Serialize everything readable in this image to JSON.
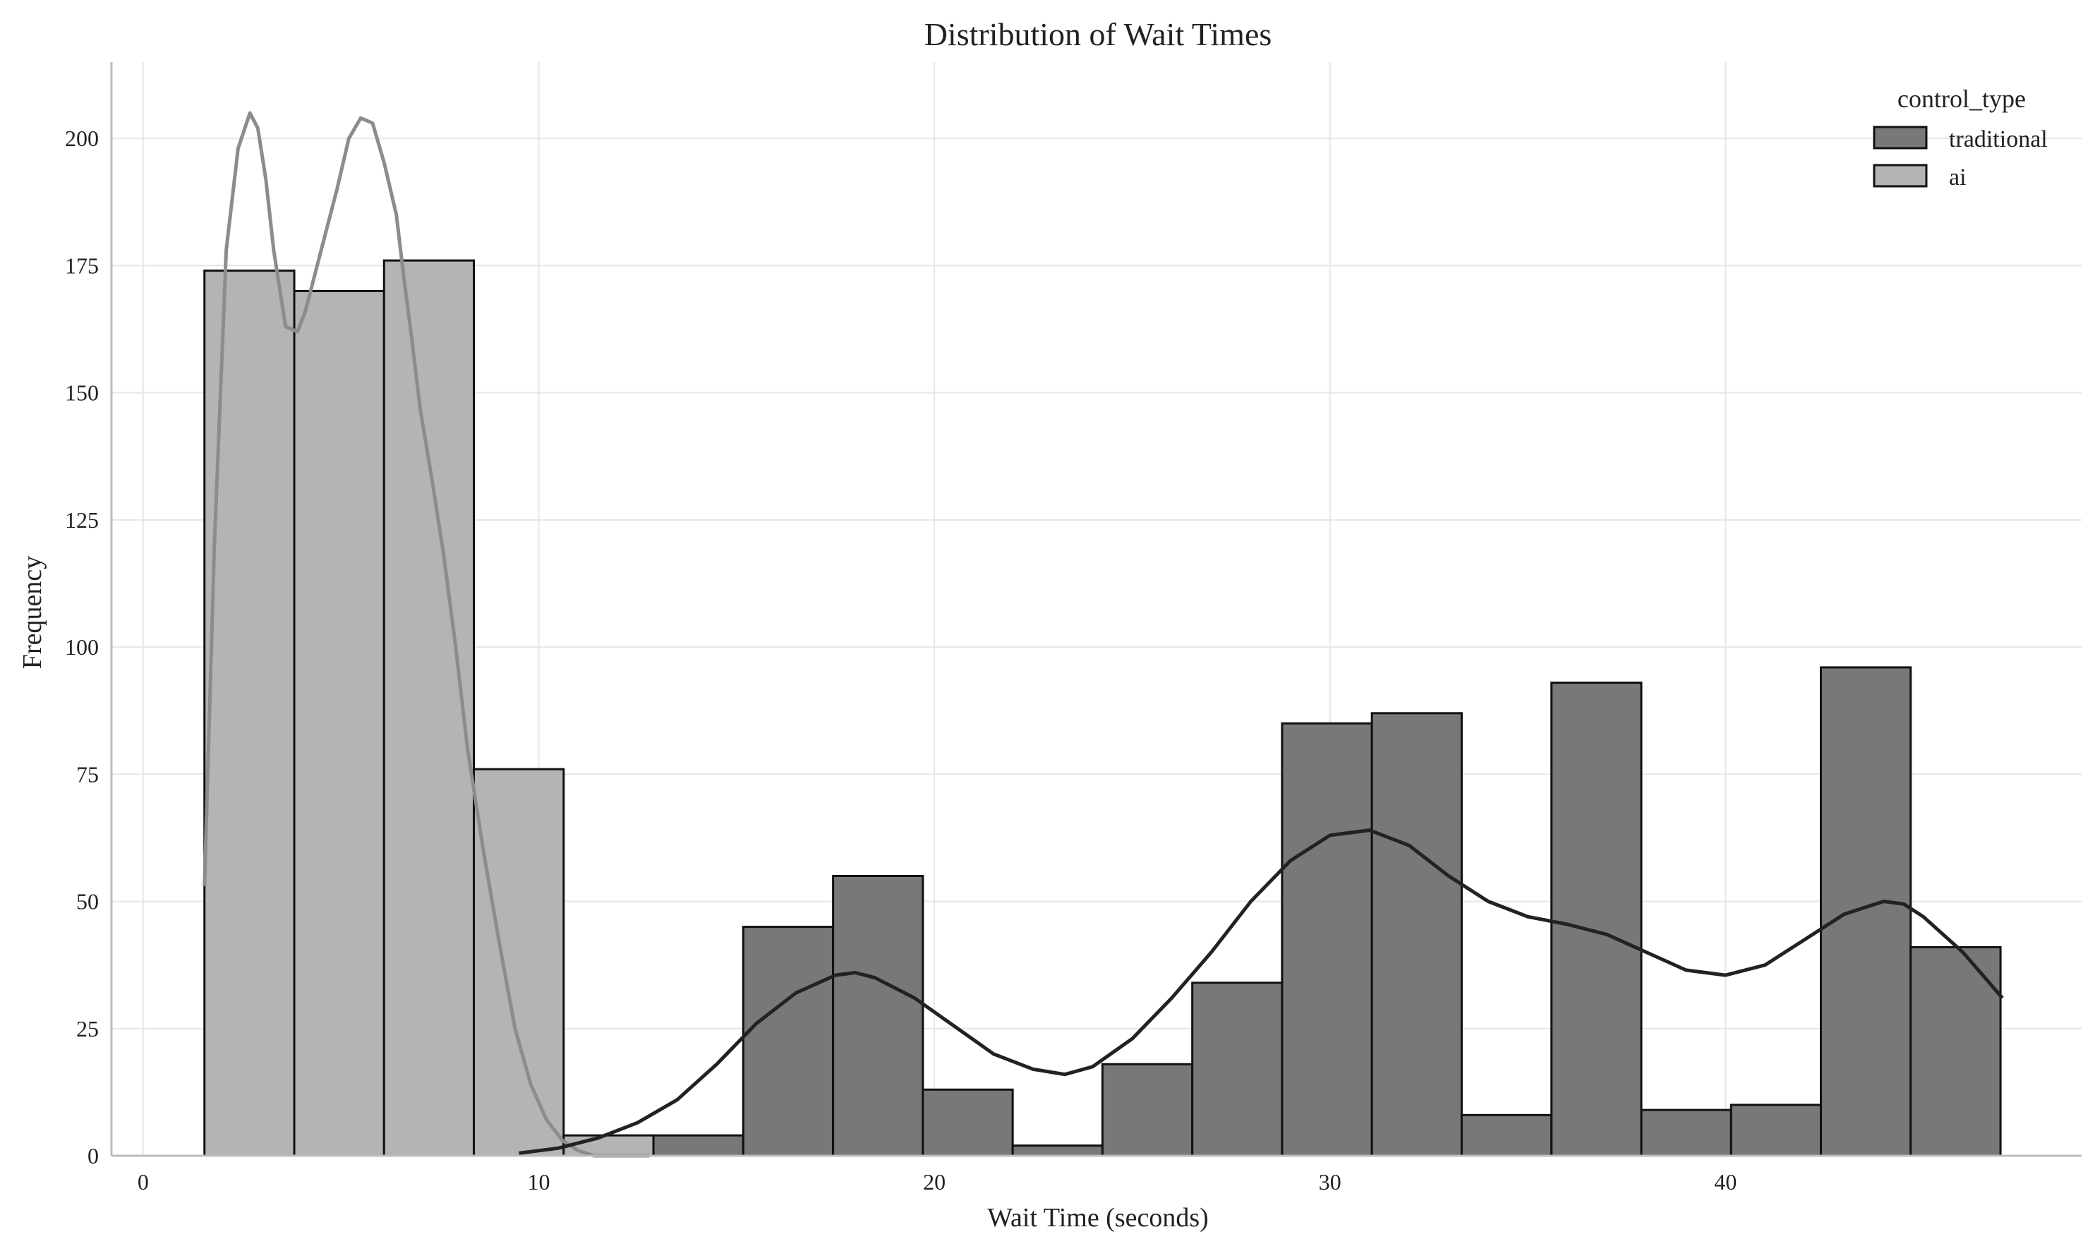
{
  "chart_data": {
    "type": "bar",
    "title": "Distribution of Wait Times",
    "xlabel": "Wait Time (seconds)",
    "ylabel": "Frequency",
    "xlim": [
      -0.8,
      49.0
    ],
    "ylim": [
      0,
      215
    ],
    "xticks": [
      0,
      10,
      20,
      30,
      40
    ],
    "yticks": [
      0,
      25,
      50,
      75,
      100,
      125,
      150,
      175,
      200
    ],
    "grid": true,
    "legend": {
      "title": "control_type",
      "position": "top-right"
    },
    "colors": {
      "traditional_fill": "#787878",
      "ai_fill": "#b4b4b4",
      "edge": "#111111",
      "traditional_kde": "#222222",
      "ai_kde": "#8c8c8c",
      "grid": "#e6e6e6",
      "axis": "#bbbbbb"
    },
    "bin_edges": [
      1.55,
      3.82,
      6.09,
      8.36,
      10.63,
      12.9,
      15.17,
      17.44,
      19.71,
      21.98,
      24.25,
      26.52,
      28.79,
      31.06,
      33.33,
      35.6,
      37.87,
      40.14,
      42.41,
      44.68,
      46.95
    ],
    "series": [
      {
        "name": "traditional",
        "values": [
          0,
          0,
          0,
          0,
          0,
          4,
          45,
          55,
          13,
          2,
          18,
          34,
          85,
          87,
          8,
          93,
          9,
          10,
          96,
          41
        ],
        "kde": {
          "x": [
            9.5,
            10.5,
            11.5,
            12.5,
            13.5,
            14.5,
            15.5,
            16.5,
            17.5,
            18.0,
            18.5,
            19.5,
            20.5,
            21.5,
            22.5,
            23.3,
            24.0,
            25.0,
            26.0,
            27.0,
            28.0,
            29.0,
            30.0,
            31.0,
            32.0,
            33.0,
            34.0,
            35.0,
            36.0,
            37.0,
            38.0,
            39.0,
            40.0,
            41.0,
            42.0,
            43.0,
            44.0,
            44.5,
            45.0,
            46.0,
            47.0
          ],
          "y": [
            0.5,
            1.5,
            3.5,
            6.5,
            11,
            18,
            26,
            32,
            35.5,
            36,
            35,
            31,
            25.5,
            20,
            17,
            16,
            17.5,
            23,
            31,
            40,
            50,
            58,
            63,
            64,
            61,
            55,
            50,
            47,
            45.5,
            43.5,
            40,
            36.5,
            35.5,
            37.5,
            42.5,
            47.5,
            50,
            49.5,
            47,
            40,
            31
          ]
        }
      },
      {
        "name": "ai",
        "values": [
          174,
          170,
          176,
          76,
          4,
          0,
          0,
          0,
          0,
          0,
          0,
          0,
          0,
          0,
          0,
          0,
          0,
          0,
          0,
          0
        ],
        "kde": {
          "x": [
            1.55,
            1.8,
            2.1,
            2.4,
            2.7,
            2.9,
            3.1,
            3.3,
            3.6,
            3.9,
            4.1,
            4.3,
            4.6,
            4.9,
            5.2,
            5.5,
            5.8,
            6.1,
            6.4,
            6.6,
            6.8,
            7.0,
            7.3,
            7.6,
            7.9,
            8.2,
            8.6,
            9.0,
            9.4,
            9.8,
            10.2,
            10.6,
            11.0,
            11.4,
            11.8,
            12.3,
            12.8
          ],
          "y": [
            53,
            120,
            178,
            198,
            205,
            202,
            192,
            178,
            163,
            162,
            166,
            172,
            181,
            190,
            200,
            204,
            203,
            195,
            185,
            172,
            160,
            147,
            133,
            118,
            100,
            80,
            60,
            42,
            25,
            14,
            7,
            3,
            1,
            0,
            0,
            0,
            0
          ]
        }
      }
    ]
  }
}
